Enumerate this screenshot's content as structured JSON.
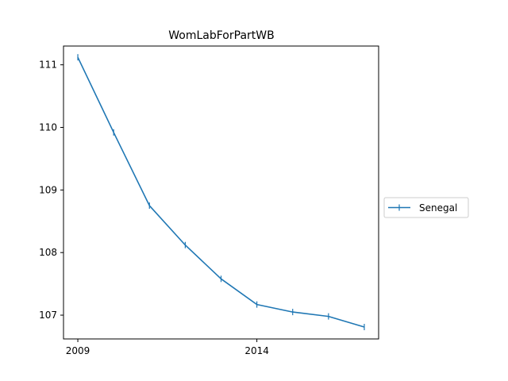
{
  "chart_data": {
    "type": "line",
    "title": "WomLabForPartWB",
    "xlabel": "",
    "ylabel": "",
    "x": [
      2009,
      2010,
      2011,
      2012,
      2013,
      2014,
      2015,
      2016,
      2017
    ],
    "series": [
      {
        "name": "Senegal",
        "values": [
          111.12,
          109.92,
          108.75,
          108.12,
          107.58,
          107.17,
          107.05,
          106.98,
          106.81
        ],
        "color": "#1f77b4",
        "marker": "vertical-tick"
      }
    ],
    "xlim": [
      2008.6,
      2017.4
    ],
    "ylim": [
      106.62,
      111.3
    ],
    "x_ticks": [
      2009,
      2014
    ],
    "y_ticks": [
      107,
      108,
      109,
      110,
      111
    ],
    "grid": false,
    "legend_position": "outside-right"
  }
}
